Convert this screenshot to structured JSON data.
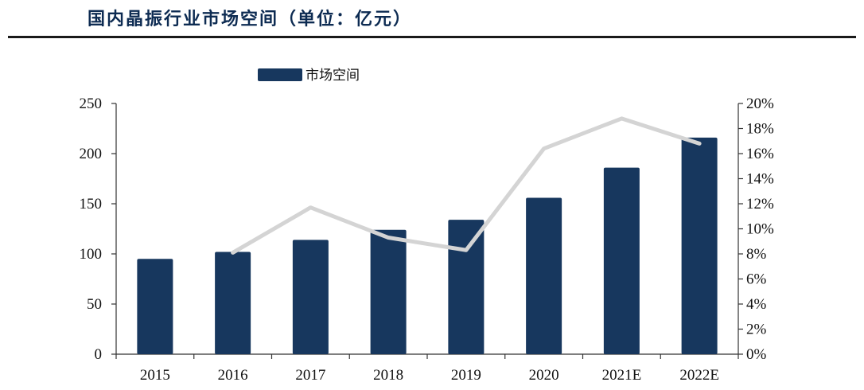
{
  "header": {
    "title": "国内晶振行业市场空间（单位：亿元）"
  },
  "chart_data": {
    "type": "bar",
    "categories": [
      "2015",
      "2016",
      "2017",
      "2018",
      "2019",
      "2020",
      "2021E",
      "2022E"
    ],
    "series": [
      {
        "name": "市场空间",
        "type": "bar",
        "axis": "left",
        "values": [
          95,
          102,
          114,
          124,
          134,
          156,
          186,
          216
        ]
      },
      {
        "type": "line",
        "axis": "right",
        "unit": "%",
        "values": [
          null,
          8.1,
          11.7,
          9.3,
          8.3,
          16.4,
          18.8,
          16.8
        ]
      }
    ],
    "ylim": [
      0,
      250
    ],
    "y_ticks": [
      0,
      50,
      100,
      150,
      200,
      250
    ],
    "y2lim": [
      0,
      20
    ],
    "y2_ticks": [
      "0%",
      "2%",
      "4%",
      "6%",
      "8%",
      "10%",
      "12%",
      "14%",
      "16%",
      "18%",
      "20%"
    ],
    "legend_position": "top-center",
    "grid": false,
    "colors": {
      "bar": "#17375e",
      "line": "#d4d4d4"
    }
  }
}
